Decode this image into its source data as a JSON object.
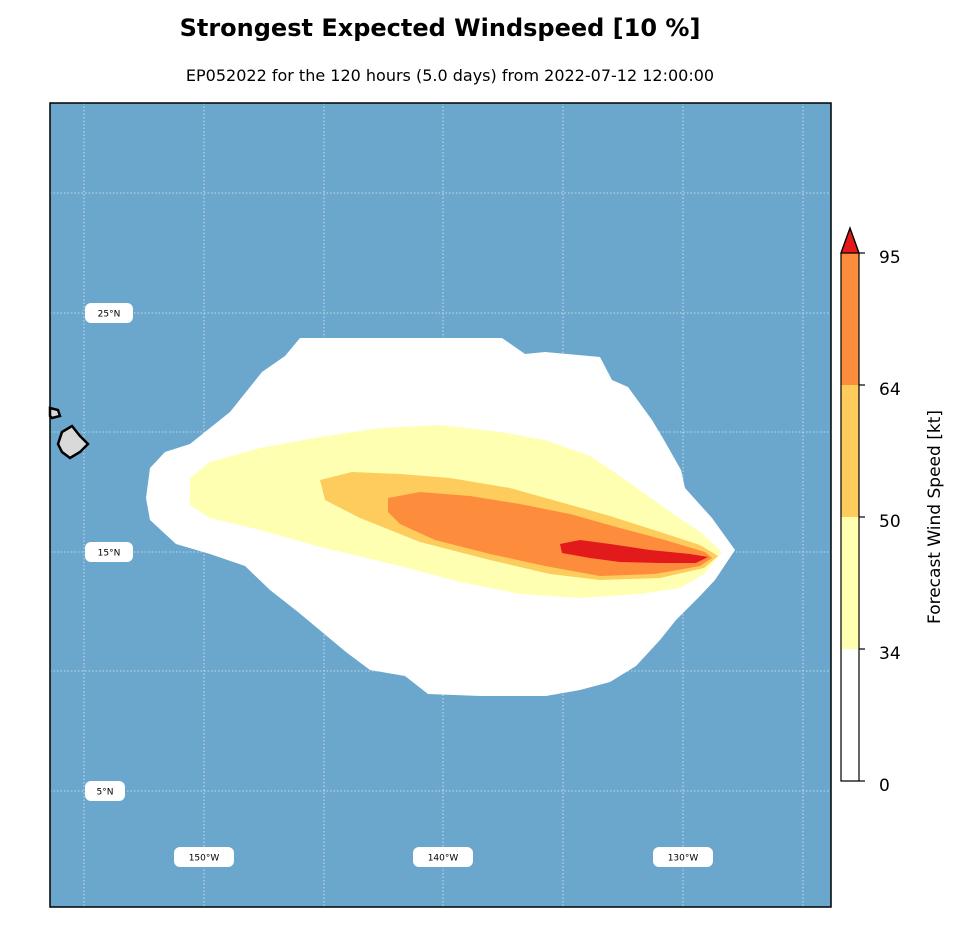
{
  "title": "Strongest Expected Windspeed [10 %]",
  "subtitle": "EP052022 for the 120 hours (5.0 days) from 2022-07-12 12:00:00",
  "map": {
    "ocean_color": "#6ba7cc",
    "land_color": "#d9d9d9",
    "lat_labels": [
      "25°N",
      "15°N",
      "5°N"
    ],
    "lon_labels": [
      "150°W",
      "140°W",
      "130°W"
    ]
  },
  "wind_levels": [
    {
      "range": "0-34 kt",
      "color": "#ffffff"
    },
    {
      "range": "34-50 kt",
      "color": "#ffffb2"
    },
    {
      "range": "50-64 kt",
      "color": "#fecc5c"
    },
    {
      "range": "64-95 kt",
      "color": "#fd8d3c"
    },
    {
      "range": ">95 kt",
      "color": "#e31a1c"
    }
  ],
  "colorbar": {
    "label": "Forecast Wind Speed [kt]",
    "ticks": [
      "0",
      "34",
      "50",
      "64",
      "95"
    ],
    "colors": [
      "#ffffff",
      "#ffffb2",
      "#fecc5c",
      "#fd8d3c",
      "#e31a1c"
    ]
  }
}
